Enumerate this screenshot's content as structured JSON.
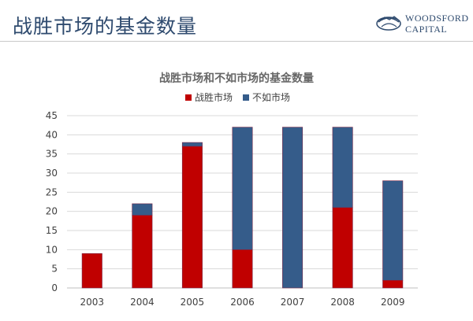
{
  "slide": {
    "title": "战胜市场的基金数量"
  },
  "logo": {
    "line1": "WOODSFORD",
    "line2": "CAPITAL"
  },
  "colors": {
    "beat": "#c00000",
    "lose": "#355c8a",
    "title": "#2e4a6e"
  },
  "chart_data": {
    "type": "bar",
    "stacked": true,
    "title": "战胜市场和不如市场的基金数量",
    "categories": [
      "2003",
      "2004",
      "2005",
      "2006",
      "2007",
      "2008",
      "2009"
    ],
    "series": [
      {
        "name": "战胜市场",
        "values": [
          9,
          19,
          37,
          10,
          0,
          21,
          2
        ]
      },
      {
        "name": "不如市场",
        "values": [
          0,
          3,
          1,
          32,
          42,
          21,
          26
        ]
      }
    ],
    "ylim": [
      0,
      45
    ],
    "yticks": [
      0,
      5,
      10,
      15,
      20,
      25,
      30,
      35,
      40,
      45
    ],
    "grid": true,
    "legend": "top"
  }
}
